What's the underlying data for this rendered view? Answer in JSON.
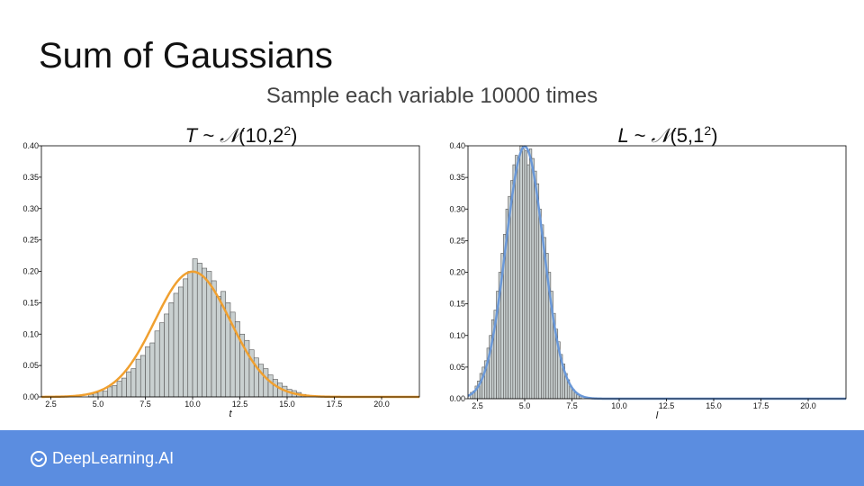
{
  "slide": {
    "title": "Sum of Gaussians",
    "subtitle": "Sample each variable 10000 times",
    "brand": "DeepLearning.AI"
  },
  "colors": {
    "footer": "#5b8de0",
    "bar_fill": "#c9d0d0",
    "bar_edge": "#555555",
    "left_curve": "#f0a030",
    "right_curve": "#6a98d8"
  },
  "chart_data": [
    {
      "type": "bar",
      "subtype": "histogram-with-density",
      "title": "T ~ 𝒩(10,2²)",
      "title_parts": {
        "var": "T",
        "mean": "10",
        "sd": "2"
      },
      "xlabel": "t",
      "ylabel": "",
      "xlim": [
        2,
        22
      ],
      "ylim": [
        0,
        0.4
      ],
      "xticks": [
        "2.5",
        "5.0",
        "7.5",
        "10.0",
        "12.5",
        "15.0",
        "17.5",
        "20.0"
      ],
      "yticks": [
        "0.00",
        "0.05",
        "0.10",
        "0.15",
        "0.20",
        "0.25",
        "0.30",
        "0.35",
        "0.40"
      ],
      "density": {
        "name": "",
        "mean": 10,
        "sd": 2,
        "color": "#f0a030"
      },
      "bin_width": 0.25,
      "bins_x": [
        4.5,
        4.75,
        5.0,
        5.25,
        5.5,
        5.75,
        6.0,
        6.25,
        6.5,
        6.75,
        7.0,
        7.25,
        7.5,
        7.75,
        8.0,
        8.25,
        8.5,
        8.75,
        9.0,
        9.25,
        9.5,
        9.75,
        10.0,
        10.25,
        10.5,
        10.75,
        11.0,
        11.25,
        11.5,
        11.75,
        12.0,
        12.25,
        12.5,
        12.75,
        13.0,
        13.25,
        13.5,
        13.75,
        14.0,
        14.25,
        14.5,
        14.75,
        15.0,
        15.25,
        15.5,
        15.75
      ],
      "bins_values": [
        0.004,
        0.006,
        0.01,
        0.009,
        0.016,
        0.018,
        0.025,
        0.03,
        0.04,
        0.045,
        0.06,
        0.066,
        0.08,
        0.086,
        0.105,
        0.118,
        0.132,
        0.15,
        0.165,
        0.175,
        0.188,
        0.2,
        0.22,
        0.213,
        0.205,
        0.2,
        0.185,
        0.16,
        0.168,
        0.15,
        0.135,
        0.12,
        0.1,
        0.09,
        0.075,
        0.062,
        0.052,
        0.045,
        0.035,
        0.028,
        0.022,
        0.017,
        0.012,
        0.01,
        0.007,
        0.004
      ]
    },
    {
      "type": "bar",
      "subtype": "histogram-with-density",
      "title": "L ~ 𝒩(5,1²)",
      "title_parts": {
        "var": "L",
        "mean": "5",
        "sd": "1"
      },
      "xlabel": "l",
      "ylabel": "",
      "xlim": [
        2,
        22
      ],
      "ylim": [
        0,
        0.4
      ],
      "xticks": [
        "2.5",
        "5.0",
        "7.5",
        "10.0",
        "12.5",
        "15.0",
        "17.5",
        "20.0"
      ],
      "yticks": [
        "0.00",
        "0.05",
        "0.10",
        "0.15",
        "0.20",
        "0.25",
        "0.30",
        "0.35",
        "0.40"
      ],
      "density": {
        "name": "",
        "mean": 5,
        "sd": 1,
        "color": "#6a98d8"
      },
      "bin_width": 0.125,
      "bins_x": [
        2.125,
        2.25,
        2.375,
        2.5,
        2.625,
        2.75,
        2.875,
        3.0,
        3.125,
        3.25,
        3.375,
        3.5,
        3.625,
        3.75,
        3.875,
        4.0,
        4.125,
        4.25,
        4.375,
        4.5,
        4.625,
        4.75,
        4.875,
        5.0,
        5.125,
        5.25,
        5.375,
        5.5,
        5.625,
        5.75,
        5.875,
        6.0,
        6.125,
        6.25,
        6.375,
        6.5,
        6.625,
        6.75,
        6.875,
        7.0,
        7.125,
        7.25,
        7.375,
        7.5,
        7.625,
        7.75,
        7.875
      ],
      "bins_values": [
        0.01,
        0.012,
        0.02,
        0.028,
        0.04,
        0.05,
        0.06,
        0.08,
        0.1,
        0.125,
        0.14,
        0.17,
        0.2,
        0.23,
        0.26,
        0.3,
        0.32,
        0.345,
        0.37,
        0.385,
        0.38,
        0.4,
        0.395,
        0.392,
        0.37,
        0.395,
        0.38,
        0.36,
        0.34,
        0.3,
        0.275,
        0.255,
        0.23,
        0.2,
        0.17,
        0.135,
        0.11,
        0.09,
        0.07,
        0.055,
        0.04,
        0.03,
        0.02,
        0.015,
        0.01,
        0.006,
        0.004
      ]
    }
  ]
}
